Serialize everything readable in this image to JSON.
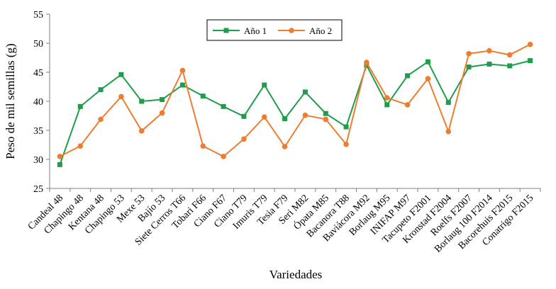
{
  "chart_data": {
    "type": "line",
    "title": "",
    "xlabel": "Variedades",
    "ylabel": "Peso de mil semillas (g)",
    "ylim": [
      25,
      55
    ],
    "yticks": [
      25,
      30,
      35,
      40,
      45,
      50,
      55
    ],
    "grid": false,
    "legend_position": "top-center",
    "categories": [
      "Candeal 48",
      "Chapingo 48",
      "Kentana 48",
      "Chapingo 53",
      "Mexe 53",
      "Bajío 53",
      "Siete Cerros T66",
      "Tobari F66",
      "Ciano F67",
      "Ciano T79",
      "Imuris T79",
      "Tesia F79",
      "Seri M82",
      "Ópata M85",
      "Bacanora T88",
      "Baviácora M92",
      "Borlaug M95",
      "INIFAP M97",
      "Tacupeto F2001",
      "Kronstad F2004",
      "Roelfs F2007",
      "Borlaug 100 F2014",
      "Bacorehuis F2015",
      "Conatrigo F2015"
    ],
    "series": [
      {
        "name": "Año 1",
        "color": "#1e9e4a",
        "marker": "square",
        "values": [
          29.1,
          39.1,
          42.0,
          44.6,
          40.0,
          40.3,
          42.8,
          40.9,
          39.1,
          37.4,
          42.8,
          37.0,
          41.6,
          37.9,
          35.6,
          46.2,
          39.4,
          44.4,
          46.8,
          39.8,
          45.9,
          46.4,
          46.1,
          47.0
        ]
      },
      {
        "name": "Año 2",
        "color": "#ed7d31",
        "marker": "circle",
        "values": [
          30.5,
          32.3,
          36.9,
          40.8,
          34.9,
          38.0,
          45.3,
          32.3,
          30.5,
          33.5,
          37.3,
          32.2,
          37.6,
          36.9,
          32.6,
          46.7,
          40.6,
          39.4,
          43.9,
          34.8,
          48.2,
          48.7,
          48.0,
          49.8
        ]
      }
    ]
  }
}
